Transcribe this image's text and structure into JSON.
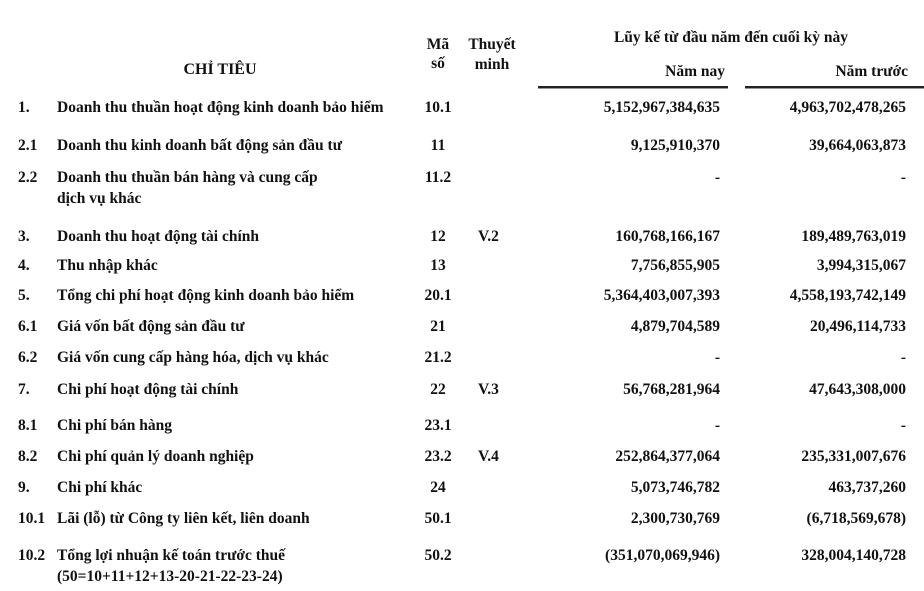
{
  "header": {
    "indicator": "CHỈ TIÊU",
    "code_line1": "Mã",
    "code_line2": "số",
    "note_line1": "Thuyết",
    "note_line2": "minh",
    "cumulative": "Lũy kế từ đầu năm đến cuối kỳ này",
    "this_year": "Năm nay",
    "last_year": "Năm trước"
  },
  "rows": [
    {
      "no": "1.",
      "label": "Doanh thu thuần hoạt động kinh doanh bảo hiểm",
      "label2": "",
      "code": "10.1",
      "note": "",
      "this_year": "5,152,967,384,635",
      "last_year": "4,963,702,478,265"
    },
    {
      "no": "2.1",
      "label": "Doanh thu kinh doanh bất động sản đầu tư",
      "label2": "",
      "code": "11",
      "note": "",
      "this_year": "9,125,910,370",
      "last_year": "39,664,063,873"
    },
    {
      "no": "2.2",
      "label": "Doanh thu thuần bán hàng và cung cấp",
      "label2": "dịch vụ khác",
      "code": "11.2",
      "note": "",
      "this_year": "-",
      "last_year": "-"
    },
    {
      "no": "3.",
      "label": "Doanh thu hoạt động tài chính",
      "label2": "",
      "code": "12",
      "note": "V.2",
      "this_year": "160,768,166,167",
      "last_year": "189,489,763,019"
    },
    {
      "no": "4.",
      "label": "Thu nhập khác",
      "label2": "",
      "code": "13",
      "note": "",
      "this_year": "7,756,855,905",
      "last_year": "3,994,315,067"
    },
    {
      "no": "5.",
      "label": "Tổng chi phí hoạt động kinh doanh bảo hiểm",
      "label2": "",
      "code": "20.1",
      "note": "",
      "this_year": "5,364,403,007,393",
      "last_year": "4,558,193,742,149"
    },
    {
      "no": "6.1",
      "label": "Giá vốn bất động sản đầu tư",
      "label2": "",
      "code": "21",
      "note": "",
      "this_year": "4,879,704,589",
      "last_year": "20,496,114,733"
    },
    {
      "no": "6.2",
      "label": "Giá vốn cung cấp hàng hóa, dịch vụ khác",
      "label2": "",
      "code": "21.2",
      "note": "",
      "this_year": "-",
      "last_year": "-"
    },
    {
      "no": "7.",
      "label": "Chi phí hoạt động tài chính",
      "label2": "",
      "code": "22",
      "note": "V.3",
      "this_year": "56,768,281,964",
      "last_year": "47,643,308,000"
    },
    {
      "no": "8.1",
      "label": "Chi phí bán hàng",
      "label2": "",
      "code": "23.1",
      "note": "",
      "this_year": "-",
      "last_year": "-"
    },
    {
      "no": "8.2",
      "label": "Chi phí quản lý doanh nghiệp",
      "label2": "",
      "code": "23.2",
      "note": "V.4",
      "this_year": "252,864,377,064",
      "last_year": "235,331,007,676"
    },
    {
      "no": "9.",
      "label": "Chi phí khác",
      "label2": "",
      "code": "24",
      "note": "",
      "this_year": "5,073,746,782",
      "last_year": "463,737,260"
    },
    {
      "no": "10.1",
      "label": "Lãi (lỗ) từ Công ty liên kết, liên doanh",
      "label2": "",
      "code": "50.1",
      "note": "",
      "this_year": "2,300,730,769",
      "last_year": "(6,718,569,678)"
    },
    {
      "no": "10.2",
      "label": "Tổng lợi nhuận kế toán trước thuế",
      "label2": "(50=10+11+12+13-20-21-22-23-24)",
      "code": "50.2",
      "note": "",
      "this_year": "(351,070,069,946)",
      "last_year": "328,004,140,728"
    }
  ]
}
